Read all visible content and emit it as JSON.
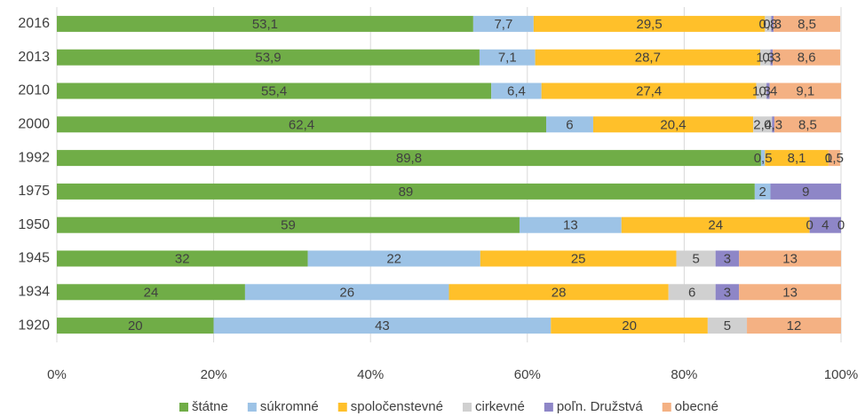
{
  "chart_data": {
    "type": "stacked_bar_horizontal",
    "categories": [
      "2016",
      "2013",
      "2010",
      "2000",
      "1992",
      "1975",
      "1950",
      "1945",
      "1934",
      "1920"
    ],
    "series": [
      {
        "name": "štátne",
        "color": "#70ad47",
        "values": [
          53.1,
          53.9,
          55.4,
          62.4,
          89.8,
          89,
          59,
          32,
          24,
          20
        ],
        "value_labels": [
          "53,1",
          "53,9",
          "55,4",
          "62,4",
          "89,8",
          "89",
          "59",
          "32",
          "24",
          "20"
        ]
      },
      {
        "name": "súkromné",
        "color": "#9dc3e6",
        "values": [
          7.7,
          7.1,
          6.4,
          6,
          0.5,
          2,
          13,
          22,
          26,
          43
        ],
        "value_labels": [
          "7,7",
          "7,1",
          "6,4",
          "6",
          "0,5",
          "2",
          "13",
          "22",
          "26",
          "43"
        ]
      },
      {
        "name": "spoločenstevné",
        "color": "#ffc02a",
        "values": [
          29.5,
          28.7,
          27.4,
          20.4,
          8.1,
          null,
          24,
          25,
          28,
          20
        ],
        "value_labels": [
          "29,5",
          "28,7",
          "27,4",
          "20,4",
          "8,1",
          null,
          "24",
          "25",
          "28",
          "20"
        ]
      },
      {
        "name": "cirkevné",
        "color": "#d0d0d0",
        "values": [
          0.8,
          1.3,
          1.3,
          2.4,
          null,
          null,
          0,
          5,
          6,
          5
        ],
        "value_labels": [
          "0,8",
          "1,3",
          "1,3",
          "2,4",
          null,
          null,
          "0",
          "5",
          "6",
          "5"
        ]
      },
      {
        "name": "poľn. Družstvá",
        "color": "#8e86c7",
        "values": [
          0.3,
          0.3,
          0.4,
          0.3,
          0,
          9,
          4,
          3,
          3,
          null
        ],
        "value_labels": [
          "0,3",
          "0,3",
          "0,4",
          "0,3",
          "0",
          "9",
          "4",
          "3",
          "3",
          null
        ]
      },
      {
        "name": "obecné",
        "color": "#f4b183",
        "values": [
          8.5,
          8.6,
          9.1,
          8.5,
          1.5,
          null,
          0,
          13,
          13,
          12
        ],
        "value_labels": [
          "8,5",
          "8,6",
          "9,1",
          "8,5",
          "1,5",
          null,
          "0",
          "13",
          "13",
          "12"
        ]
      }
    ],
    "xlim": [
      0,
      100
    ],
    "xticks": [
      {
        "value": 0,
        "label": "0%"
      },
      {
        "value": 20,
        "label": "20%"
      },
      {
        "value": 40,
        "label": "40%"
      },
      {
        "value": 60,
        "label": "60%"
      },
      {
        "value": 80,
        "label": "80%"
      },
      {
        "value": 100,
        "label": "100%"
      }
    ],
    "grid": true,
    "legend": "bottom"
  }
}
